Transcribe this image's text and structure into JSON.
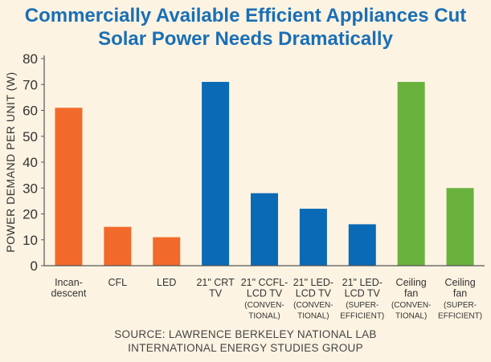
{
  "chart_data": {
    "type": "bar",
    "title_lines": [
      "Commercially Available Efficient Appliances Cut",
      "Solar Power Needs Dramatically"
    ],
    "xlabel": "",
    "ylabel": "POWER DEMAND PER UNIT (W)",
    "ylim": [
      0,
      80
    ],
    "yticks": [
      0,
      10,
      20,
      30,
      40,
      50,
      60,
      70,
      80
    ],
    "grid": false,
    "categories": [
      [
        "Incan-",
        "descent"
      ],
      [
        "CFL"
      ],
      [
        "LED"
      ],
      [
        "21\" CRT",
        "TV"
      ],
      [
        "21\" CCFL-",
        "LCD TV",
        "(CONVEN-",
        "TIONAL)"
      ],
      [
        "21\" LED-",
        "LCD TV",
        "(CONVEN-",
        "TIONAL)"
      ],
      [
        "21\" LED-",
        "LCD TV",
        "(SUPER-",
        "EFFICIENT)"
      ],
      [
        "Ceiling",
        "fan",
        "(CONVEN-",
        "TIONAL)"
      ],
      [
        "Ceiling",
        "fan",
        "(SUPER-",
        "EFFICIENT)"
      ]
    ],
    "values": [
      61,
      15,
      11,
      71,
      28,
      22,
      16,
      71,
      30
    ],
    "bar_colors": [
      "#f26a2b",
      "#f26a2b",
      "#f26a2b",
      "#0a6ab5",
      "#0a6ab5",
      "#0a6ab5",
      "#0a6ab5",
      "#6ab23e",
      "#6ab23e"
    ],
    "source_lines": [
      "SOURCE: LAWRENCE BERKELEY NATIONAL LAB",
      "INTERNATIONAL ENERGY STUDIES GROUP"
    ]
  }
}
